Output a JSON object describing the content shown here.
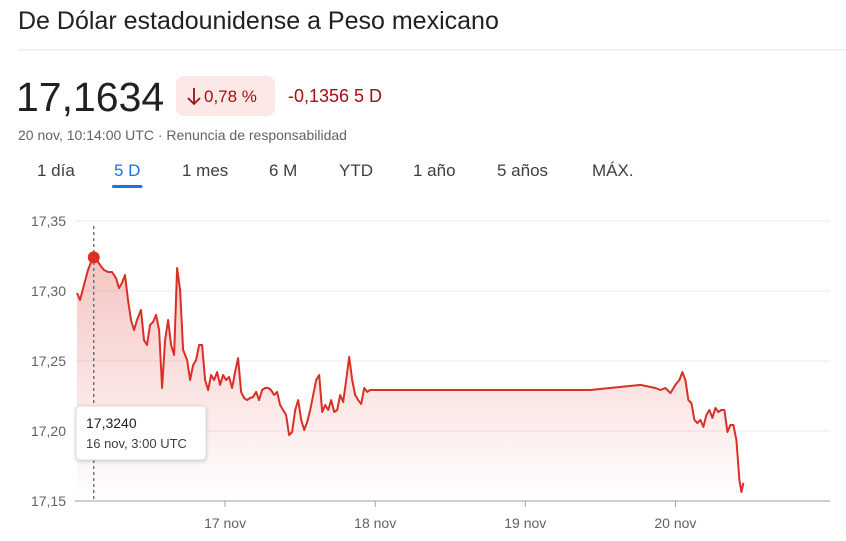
{
  "header": {
    "title": "De Dólar estadounidense a Peso mexicano",
    "price": "17,1634",
    "change_percent": "0,78 %",
    "change": "-0,1356 5 D",
    "subtitle": "20 nov, 10:14:00 UTC · Renuncia de responsabilidad"
  },
  "tabs": [
    {
      "label": "1 día",
      "selected": false
    },
    {
      "label": "5 D",
      "selected": true
    },
    {
      "label": "1 mes",
      "selected": false
    },
    {
      "label": "6 M",
      "selected": false
    },
    {
      "label": "YTD",
      "selected": false
    },
    {
      "label": "1 año",
      "selected": false
    },
    {
      "label": "5 años",
      "selected": false
    },
    {
      "label": "MÁX.",
      "selected": false
    }
  ],
  "chart_data": {
    "type": "line",
    "color": "#d93025",
    "grid": true,
    "x": [
      0.0133,
      0.0333,
      0.06,
      0.0867,
      0.1067,
      0.125,
      0.1467,
      0.1667,
      0.1933,
      0.22,
      0.2467,
      0.2733,
      0.2933,
      0.3133,
      0.3333,
      0.3533,
      0.3733,
      0.3933,
      0.4133,
      0.44,
      0.46,
      0.48,
      0.5,
      0.52,
      0.54,
      0.56,
      0.58,
      0.6,
      0.62,
      0.64,
      0.66,
      0.68,
      0.7,
      0.72,
      0.7467,
      0.7667,
      0.7867,
      0.8067,
      0.8267,
      0.8467,
      0.8667,
      0.8867,
      0.9067,
      0.9267,
      0.9467,
      0.9667,
      0.9867,
      1.0067,
      1.0267,
      1.0467,
      1.0667,
      1.0867,
      1.1067,
      1.1267,
      1.1467,
      1.1667,
      1.1867,
      1.2067,
      1.2267,
      1.2467,
      1.2667,
      1.2867,
      1.3067,
      1.3267,
      1.3467,
      1.3667,
      1.3867,
      1.4067,
      1.4267,
      1.4467,
      1.4667,
      1.4867,
      1.5067,
      1.5267,
      1.5467,
      1.5667,
      1.5867,
      1.6067,
      1.6267,
      1.6467,
      1.6667,
      1.6867,
      1.7067,
      1.7267,
      1.7467,
      1.7667,
      1.7867,
      1.8067,
      1.8267,
      1.8467,
      1.8667,
      1.8867,
      1.9067,
      1.9267,
      1.9467,
      1.9667,
      3.4333,
      3.7667,
      3.8667,
      3.9,
      3.9333,
      3.9667,
      4.0,
      4.0267,
      4.0467,
      4.0667,
      4.0867,
      4.1067,
      4.1267,
      4.1467,
      4.1667,
      4.1867,
      4.2067,
      4.2267,
      4.2467,
      4.2667,
      4.2867,
      4.3067,
      4.3267,
      4.3467,
      4.3667,
      4.3867,
      4.4067,
      4.4267,
      4.44,
      4.4533
    ],
    "values": [
      17.2986,
      17.2936,
      17.3043,
      17.315,
      17.3207,
      17.324,
      17.3221,
      17.3186,
      17.315,
      17.3136,
      17.3136,
      17.3093,
      17.3021,
      17.3057,
      17.3114,
      17.2936,
      17.2793,
      17.2721,
      17.2793,
      17.2864,
      17.265,
      17.2614,
      17.2757,
      17.2779,
      17.2829,
      17.2721,
      17.2307,
      17.265,
      17.2793,
      17.2614,
      17.2543,
      17.3164,
      17.3007,
      17.2579,
      17.2507,
      17.2364,
      17.2471,
      17.2507,
      17.2614,
      17.2614,
      17.2364,
      17.2293,
      17.24,
      17.2364,
      17.2421,
      17.2329,
      17.24,
      17.2364,
      17.2386,
      17.2307,
      17.2421,
      17.2521,
      17.2279,
      17.2236,
      17.2221,
      17.2236,
      17.2243,
      17.2279,
      17.2221,
      17.2293,
      17.2307,
      17.2307,
      17.2293,
      17.2257,
      17.2279,
      17.2186,
      17.215,
      17.2114,
      17.1971,
      17.1993,
      17.215,
      17.2221,
      17.2079,
      17.2007,
      17.2064,
      17.215,
      17.2257,
      17.2364,
      17.24,
      17.2136,
      17.2186,
      17.215,
      17.2221,
      17.2136,
      17.215,
      17.2257,
      17.2207,
      17.2364,
      17.2529,
      17.2364,
      17.2257,
      17.2221,
      17.2193,
      17.2307,
      17.2279,
      17.2293,
      17.2293,
      17.2329,
      17.2307,
      17.2293,
      17.2307,
      17.2271,
      17.2329,
      17.2364,
      17.2421,
      17.2364,
      17.2221,
      17.22,
      17.2079,
      17.2057,
      17.2079,
      17.2029,
      17.2114,
      17.215,
      17.2093,
      17.2164,
      17.2136,
      17.215,
      17.215,
      17.1993,
      17.2043,
      17.2043,
      17.1936,
      17.165,
      17.1564,
      17.1629
    ],
    "xlim": [
      0,
      5.03
    ],
    "xticks": [
      {
        "value": 1,
        "label": "17 nov"
      },
      {
        "value": 2,
        "label": "18 nov"
      },
      {
        "value": 3,
        "label": "19 nov"
      },
      {
        "value": 4,
        "label": "20 nov"
      }
    ],
    "ylim": [
      17.15,
      17.35
    ],
    "yticks": [
      {
        "value": 17.15,
        "label": "17,15"
      },
      {
        "value": 17.2,
        "label": "17,20"
      },
      {
        "value": 17.25,
        "label": "17,25"
      },
      {
        "value": 17.3,
        "label": "17,30"
      },
      {
        "value": 17.35,
        "label": "17,35"
      }
    ],
    "highlight": {
      "x": 0.125,
      "value": 17.324,
      "label": "17,3240",
      "time": "16 nov, 3:00 UTC"
    }
  }
}
